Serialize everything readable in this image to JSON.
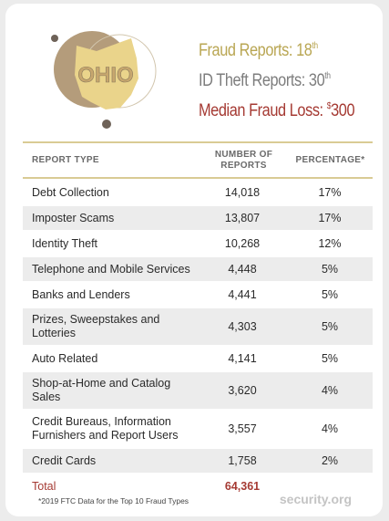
{
  "header": {
    "state": "OHIO",
    "stats": [
      {
        "label": "Fraud Reports:",
        "value": "18",
        "suffix": "th"
      },
      {
        "label": "ID Theft Reports:",
        "value": "30",
        "suffix": "th"
      },
      {
        "label": "Median Fraud Loss:",
        "prefix": "$",
        "value": "300"
      }
    ]
  },
  "table": {
    "columns": [
      "REPORT TYPE",
      "NUMBER OF REPORTS",
      "PERCENTAGE*"
    ],
    "rows": [
      [
        "Debt Collection",
        "14,018",
        "17%"
      ],
      [
        "Imposter Scams",
        "13,807",
        "17%"
      ],
      [
        "Identity Theft",
        "10,268",
        "12%"
      ],
      [
        "Telephone and Mobile Services",
        "4,448",
        "5%"
      ],
      [
        "Banks and Lenders",
        "4,441",
        "5%"
      ],
      [
        "Prizes, Sweepstakes and Lotteries",
        "4,303",
        "5%"
      ],
      [
        "Auto Related",
        "4,141",
        "5%"
      ],
      [
        "Shop-at-Home and Catalog Sales",
        "3,620",
        "4%"
      ],
      [
        "Credit Bureaus, Information Furnishers and Report Users",
        "3,557",
        "4%"
      ],
      [
        "Credit Cards",
        "1,758",
        "2%"
      ]
    ],
    "total": [
      "Total",
      "64,361"
    ]
  },
  "footer": {
    "note": "*2019 FTC Data for the Top 10 Fraud Types",
    "brand": "security.org"
  }
}
